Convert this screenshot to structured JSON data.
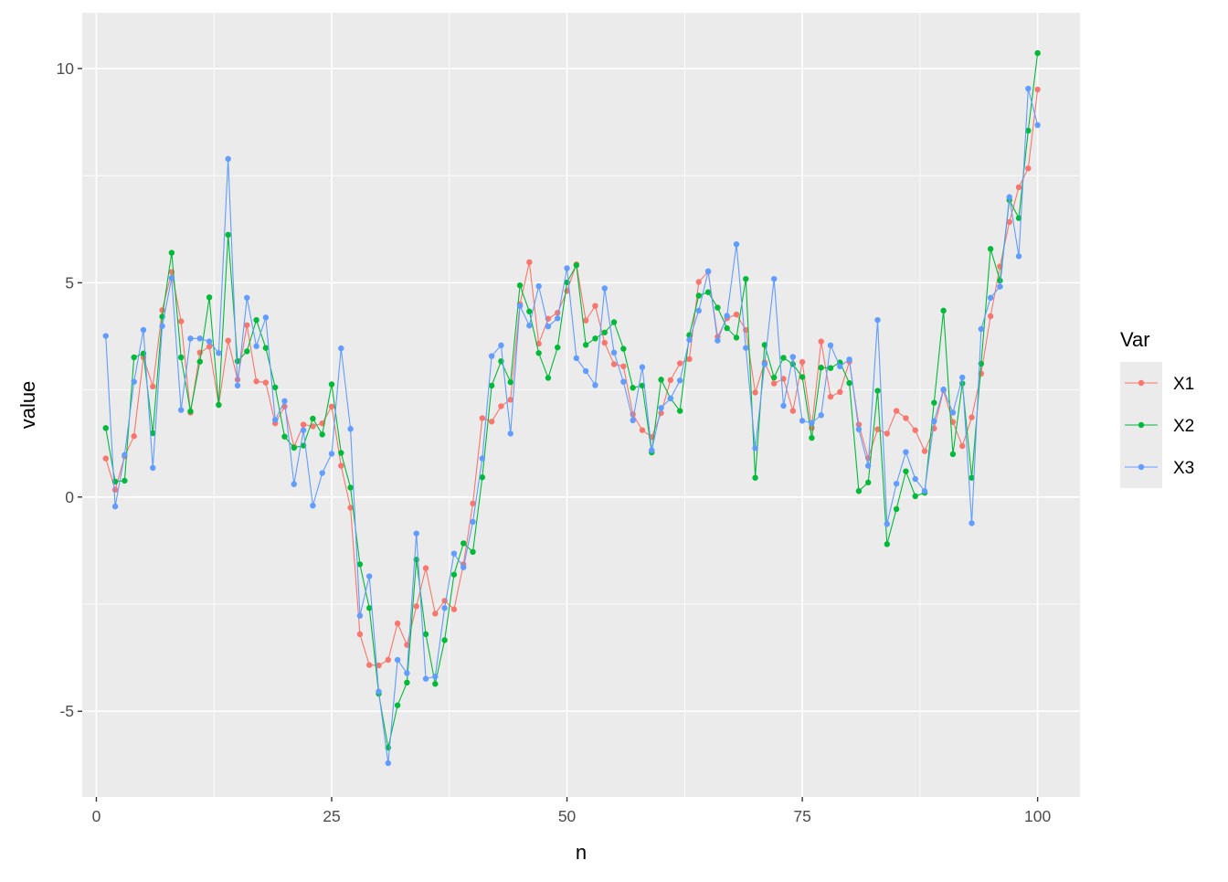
{
  "chart_data": {
    "type": "line",
    "xlabel": "n",
    "ylabel": "value",
    "xlim": [
      -1.5,
      104.5
    ],
    "ylim": [
      -7.0,
      11.3
    ],
    "xticks": [
      0,
      25,
      50,
      75,
      100
    ],
    "xtick_labels": [
      "0",
      "25",
      "50",
      "75",
      "100"
    ],
    "yticks": [
      -5,
      0,
      5,
      10
    ],
    "ytick_labels": [
      "-5",
      "0",
      "5",
      "10"
    ],
    "grid": true,
    "legend": {
      "title": "Var",
      "placement": "right"
    },
    "x": [
      1,
      2,
      3,
      4,
      5,
      6,
      7,
      8,
      9,
      10,
      11,
      12,
      13,
      14,
      15,
      16,
      17,
      18,
      19,
      20,
      21,
      22,
      23,
      24,
      25,
      26,
      27,
      28,
      29,
      30,
      31,
      32,
      33,
      34,
      35,
      36,
      37,
      38,
      39,
      40,
      41,
      42,
      43,
      44,
      45,
      46,
      47,
      48,
      49,
      50,
      51,
      52,
      53,
      54,
      55,
      56,
      57,
      58,
      59,
      60,
      61,
      62,
      63,
      64,
      65,
      66,
      67,
      68,
      69,
      70,
      71,
      72,
      73,
      74,
      75,
      76,
      77,
      78,
      79,
      80,
      81,
      82,
      83,
      84,
      85,
      86,
      87,
      88,
      89,
      90,
      91,
      92,
      93,
      94,
      95,
      96,
      97,
      98,
      99,
      100
    ],
    "series": [
      {
        "name": "X1",
        "color": "#F8766D",
        "values": [
          0.9,
          0.17,
          0.95,
          1.42,
          3.26,
          2.58,
          4.36,
          5.25,
          4.1,
          1.97,
          3.37,
          3.51,
          2.15,
          3.65,
          2.74,
          4.01,
          2.7,
          2.67,
          1.72,
          2.11,
          1.17,
          1.69,
          1.65,
          1.72,
          2.11,
          0.73,
          -0.25,
          -3.2,
          -3.92,
          -3.93,
          -3.8,
          -2.95,
          -3.45,
          -2.55,
          -1.66,
          -2.72,
          -2.42,
          -2.62,
          -1.57,
          -0.15,
          1.84,
          1.76,
          2.12,
          2.27,
          4.5,
          5.48,
          3.58,
          4.16,
          4.3,
          4.81,
          5.43,
          4.12,
          4.46,
          3.6,
          3.1,
          3.05,
          1.93,
          1.56,
          1.4,
          1.96,
          2.73,
          3.12,
          3.22,
          5.02,
          5.26,
          3.74,
          4.17,
          4.26,
          3.9,
          2.44,
          3.14,
          2.65,
          2.76,
          2.01,
          3.15,
          1.61,
          3.63,
          2.34,
          2.45,
          3.16,
          1.69,
          0.91,
          1.58,
          1.48,
          2.01,
          1.84,
          1.56,
          1.07,
          1.6,
          2.49,
          1.75,
          1.19,
          1.86,
          2.88,
          4.22,
          5.38,
          6.42,
          7.23,
          7.67,
          9.51
        ]
      },
      {
        "name": "X2",
        "color": "#00BA38",
        "values": [
          1.61,
          0.36,
          0.38,
          3.26,
          3.35,
          1.49,
          4.21,
          5.7,
          3.26,
          2.0,
          3.16,
          4.66,
          2.15,
          6.12,
          3.17,
          3.4,
          4.13,
          3.48,
          2.56,
          1.41,
          1.15,
          1.2,
          1.83,
          1.46,
          2.63,
          1.03,
          0.22,
          -1.57,
          -2.59,
          -4.59,
          -5.85,
          -4.86,
          -4.33,
          -1.46,
          -3.2,
          -4.36,
          -3.34,
          -1.81,
          -1.08,
          -1.28,
          0.46,
          2.6,
          3.17,
          2.68,
          4.94,
          4.33,
          3.36,
          2.78,
          3.49,
          5.01,
          5.41,
          3.55,
          3.7,
          3.84,
          4.08,
          3.46,
          2.55,
          2.6,
          1.04,
          2.74,
          2.3,
          2.01,
          3.78,
          4.7,
          4.78,
          4.42,
          3.94,
          3.72,
          5.09,
          0.45,
          3.55,
          2.79,
          3.25,
          3.1,
          2.8,
          1.38,
          3.02,
          3.01,
          3.14,
          2.66,
          0.14,
          0.34,
          2.48,
          -1.1,
          -0.28,
          0.6,
          0.02,
          0.1,
          2.2,
          4.35,
          1.0,
          2.65,
          0.45,
          3.11,
          5.79,
          5.05,
          6.93,
          6.51,
          8.55,
          10.36
        ]
      },
      {
        "name": "X3",
        "color": "#619CFF",
        "values": [
          3.76,
          -0.22,
          0.98,
          2.69,
          3.9,
          0.68,
          3.99,
          5.11,
          2.03,
          3.7,
          3.7,
          3.63,
          3.36,
          7.89,
          2.6,
          4.65,
          3.52,
          4.19,
          1.8,
          2.24,
          0.3,
          1.56,
          -0.2,
          0.56,
          1.01,
          3.47,
          1.59,
          -2.77,
          -1.85,
          -4.54,
          -6.21,
          -3.8,
          -4.11,
          -0.85,
          -4.24,
          -4.19,
          -2.59,
          -1.32,
          -1.64,
          -0.58,
          0.9,
          3.29,
          3.54,
          1.48,
          4.46,
          4.0,
          4.92,
          3.98,
          4.17,
          5.34,
          3.24,
          2.94,
          2.61,
          4.87,
          3.37,
          2.69,
          1.79,
          3.03,
          1.09,
          2.08,
          2.3,
          2.72,
          3.67,
          4.35,
          5.27,
          3.65,
          4.23,
          5.9,
          3.48,
          1.14,
          3.1,
          5.09,
          2.13,
          3.27,
          1.78,
          1.73,
          1.91,
          3.54,
          3.05,
          3.21,
          1.58,
          0.73,
          4.13,
          -0.63,
          0.31,
          1.05,
          0.42,
          0.14,
          1.77,
          2.51,
          1.97,
          2.79,
          -0.61,
          3.92,
          4.65,
          4.91,
          7.0,
          5.62,
          9.53,
          8.68
        ]
      }
    ]
  }
}
